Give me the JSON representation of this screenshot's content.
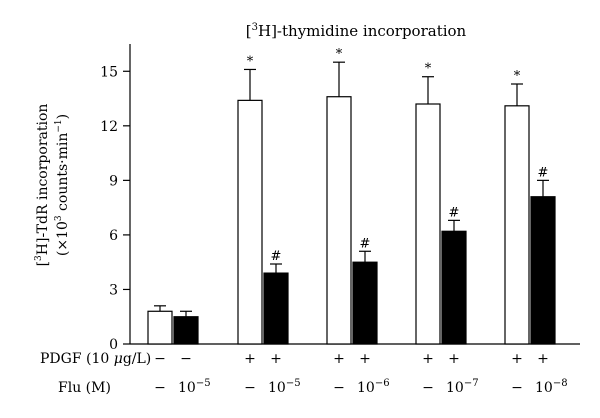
{
  "chart_data": {
    "type": "bar",
    "title_prefix": "[",
    "title_sup": "3",
    "title_suffix": "H]-thymidine incorporation",
    "ylabel_line1_pre": "[",
    "ylabel_line1_sup": "3",
    "ylabel_line1_post": "H]-TdR incorporation",
    "ylabel_line2_pre": "(×10",
    "ylabel_line2_sup1": "3",
    "ylabel_line2_mid": " counts·min",
    "ylabel_line2_sup2": "−1",
    "ylabel_line2_post": ")",
    "ylim": [
      0,
      16.5
    ],
    "yticks": [
      "0",
      "3",
      "6",
      "9",
      "12",
      "15"
    ],
    "ytick_values": [
      0,
      3,
      6,
      9,
      12,
      15
    ],
    "grid": false,
    "groups": [
      {
        "bars": [
          {
            "value": 1.8,
            "error": 0.3,
            "fill": "white",
            "mark": ""
          },
          {
            "value": 1.5,
            "error": 0.3,
            "fill": "black",
            "mark": ""
          }
        ],
        "pdgf": [
          "−",
          "−"
        ],
        "flu_sign": "−",
        "flu_base": "10",
        "flu_exp": "−5"
      },
      {
        "bars": [
          {
            "value": 13.4,
            "error": 1.7,
            "fill": "white",
            "mark": "*"
          },
          {
            "value": 3.9,
            "error": 0.5,
            "fill": "black",
            "mark": "#"
          }
        ],
        "pdgf": [
          "+",
          "+"
        ],
        "flu_sign": "−",
        "flu_base": "10",
        "flu_exp": "−5"
      },
      {
        "bars": [
          {
            "value": 13.6,
            "error": 1.9,
            "fill": "white",
            "mark": "*"
          },
          {
            "value": 4.5,
            "error": 0.6,
            "fill": "black",
            "mark": "#"
          }
        ],
        "pdgf": [
          "+",
          "+"
        ],
        "flu_sign": "−",
        "flu_base": "10",
        "flu_exp": "−6"
      },
      {
        "bars": [
          {
            "value": 13.2,
            "error": 1.5,
            "fill": "white",
            "mark": "*"
          },
          {
            "value": 6.2,
            "error": 0.6,
            "fill": "black",
            "mark": "#"
          }
        ],
        "pdgf": [
          "+",
          "+"
        ],
        "flu_sign": "−",
        "flu_base": "10",
        "flu_exp": "−7"
      },
      {
        "bars": [
          {
            "value": 13.1,
            "error": 1.2,
            "fill": "white",
            "mark": "*"
          },
          {
            "value": 8.1,
            "error": 0.9,
            "fill": "black",
            "mark": "#"
          }
        ],
        "pdgf": [
          "+",
          "+"
        ],
        "flu_sign": "−",
        "flu_base": "10",
        "flu_exp": "−8"
      }
    ],
    "row_labels": {
      "pdgf_pre": "PDGF (10 ",
      "pdgf_mu": "μ",
      "pdgf_post": "g/L)",
      "flu": "Flu (M)"
    },
    "colors": {
      "white_bar": "#ffffff",
      "black_bar": "#000000",
      "axis": "#000000"
    }
  }
}
